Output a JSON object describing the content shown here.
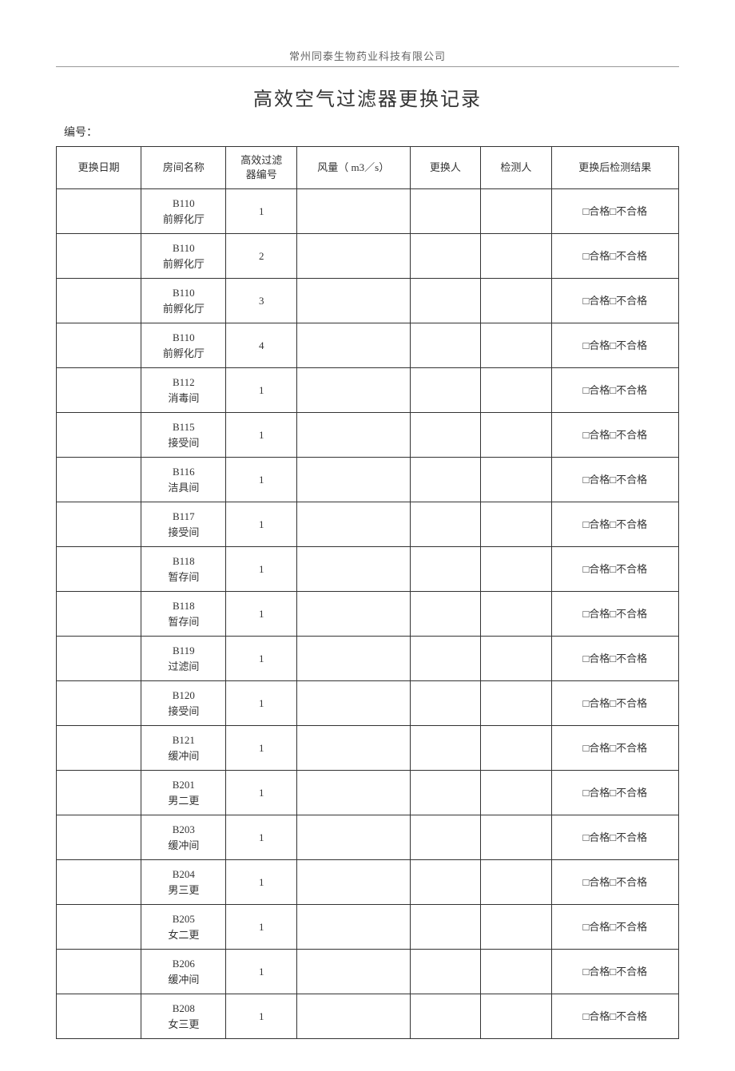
{
  "company": "常州同泰生物药业科技有限公司",
  "title": "高效空气过滤器更换记录",
  "serial_label": "编号：",
  "result_text": "□合格□不合格",
  "columns": {
    "date": "更换日期",
    "room": "房间名称",
    "filter_no": "高效过滤\n器编号",
    "air_volume": "风量（ m3／s）",
    "changer": "更换人",
    "inspector": "检测人",
    "result": "更换后检测结果"
  },
  "rows": [
    {
      "room_code": "B110",
      "room_name": "前孵化厅",
      "filter_no": "1"
    },
    {
      "room_code": "B110",
      "room_name": "前孵化厅",
      "filter_no": "2"
    },
    {
      "room_code": "B110",
      "room_name": "前孵化厅",
      "filter_no": "3"
    },
    {
      "room_code": "B110",
      "room_name": "前孵化厅",
      "filter_no": "4"
    },
    {
      "room_code": "B112",
      "room_name": "消毒间",
      "filter_no": "1"
    },
    {
      "room_code": "B115",
      "room_name": "接受间",
      "filter_no": "1"
    },
    {
      "room_code": "B116",
      "room_name": "洁具间",
      "filter_no": "1"
    },
    {
      "room_code": "B117",
      "room_name": "接受间",
      "filter_no": "1"
    },
    {
      "room_code": "B118",
      "room_name": "暂存间",
      "filter_no": "1"
    },
    {
      "room_code": "B118",
      "room_name": "暂存间",
      "filter_no": "1"
    },
    {
      "room_code": "B119",
      "room_name": "过滤间",
      "filter_no": "1"
    },
    {
      "room_code": "B120",
      "room_name": "接受间",
      "filter_no": "1"
    },
    {
      "room_code": "B121",
      "room_name": "缓冲间",
      "filter_no": "1"
    },
    {
      "room_code": "B201",
      "room_name": "男二更",
      "filter_no": "1"
    },
    {
      "room_code": "B203",
      "room_name": "缓冲间",
      "filter_no": "1"
    },
    {
      "room_code": "B204",
      "room_name": "男三更",
      "filter_no": "1"
    },
    {
      "room_code": "B205",
      "room_name": "女二更",
      "filter_no": "1"
    },
    {
      "room_code": "B206",
      "room_name": "缓冲间",
      "filter_no": "1"
    },
    {
      "room_code": "B208",
      "room_name": "女三更",
      "filter_no": "1"
    }
  ],
  "style": {
    "background_color": "#ffffff",
    "text_color": "#333333",
    "border_color": "#333333",
    "header_text_color": "#666666",
    "title_fontsize": 24,
    "body_fontsize": 13,
    "col_widths_pct": [
      12,
      12,
      10,
      16,
      10,
      10,
      18
    ]
  }
}
